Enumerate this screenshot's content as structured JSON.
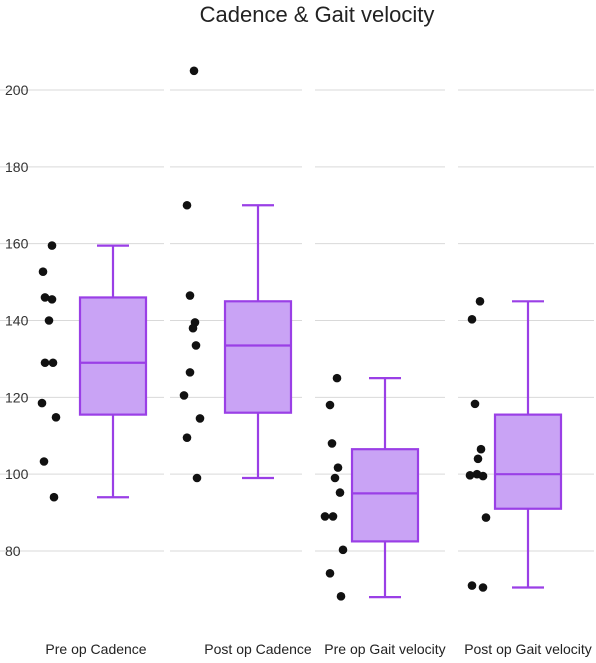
{
  "chart_data": {
    "type": "box",
    "title": "Cadence & Gait velocity",
    "xlabel": "",
    "ylabel": "",
    "categories": [
      "Pre op Cadence",
      "Post op Cadence",
      "Pre op Gait velocity",
      "Post op Gait velocity"
    ],
    "yticks": [
      80,
      100,
      120,
      140,
      160,
      180,
      200
    ],
    "ylim": [
      63,
      210
    ],
    "grid": true,
    "colors": {
      "box_fill": "#c9a3f5",
      "box_stroke": "#9a3fe6",
      "point": "#111111",
      "grid": "#d9d9d9"
    },
    "boxes": [
      {
        "name": "Pre op Cadence",
        "min": 94,
        "q1": 115.5,
        "median": 129,
        "q3": 146,
        "max": 159.5,
        "points": [
          159.5,
          152.7,
          146,
          145.5,
          140,
          129,
          129,
          118.5,
          114.8,
          103.3,
          94
        ]
      },
      {
        "name": "Post op Cadence",
        "min": 99,
        "q1": 116,
        "median": 133.5,
        "q3": 145,
        "max": 170,
        "points": [
          205,
          170,
          146.5,
          139.5,
          138,
          133.5,
          126.5,
          120.5,
          114.5,
          109.5,
          99
        ]
      },
      {
        "name": "Pre op Gait velocity",
        "min": 68,
        "q1": 82.5,
        "median": 95,
        "q3": 106.5,
        "max": 125,
        "points": [
          125,
          118,
          108,
          101.7,
          99,
          95.2,
          89,
          89,
          80.3,
          74.2,
          68.2
        ]
      },
      {
        "name": "Post op Gait velocity",
        "min": 70.5,
        "q1": 91,
        "median": 100,
        "q3": 115.5,
        "max": 145,
        "points": [
          145,
          140.3,
          118.3,
          106.5,
          104,
          100,
          99.7,
          99.5,
          88.7,
          71,
          70.5
        ]
      }
    ]
  }
}
